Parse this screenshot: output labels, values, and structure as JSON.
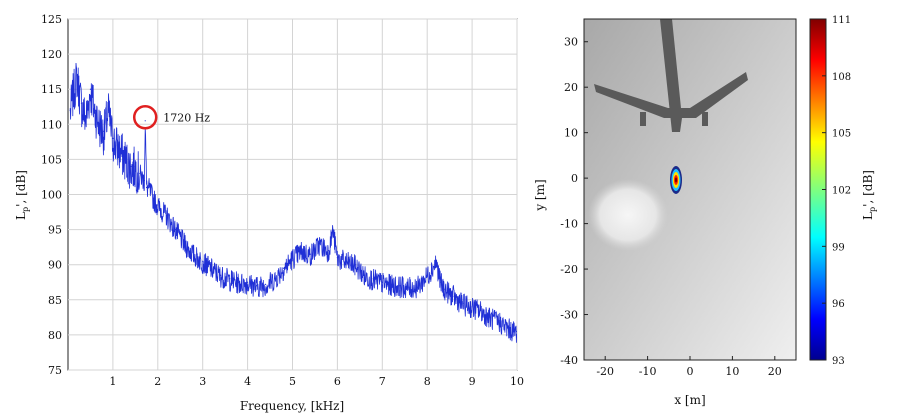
{
  "chart_data": [
    {
      "type": "line",
      "xlabel": "Frequency, [kHz]",
      "ylabel": "L",
      "ylabel_sub": "p",
      "ylabel_unit": "', [dB]",
      "xlim": [
        0,
        10
      ],
      "ylim": [
        75,
        125
      ],
      "grid": true,
      "x_ticks": [
        1,
        2,
        3,
        4,
        5,
        6,
        7,
        8,
        9,
        10
      ],
      "y_ticks": [
        75,
        80,
        85,
        90,
        95,
        100,
        105,
        110,
        115,
        120,
        125
      ],
      "series_color": "#1f2fd6",
      "series": [
        {
          "x": [
            0.05,
            0.1,
            0.2,
            0.3,
            0.4,
            0.5,
            0.6,
            0.7,
            0.8,
            0.9,
            1.0,
            1.1,
            1.2,
            1.3,
            1.4,
            1.5,
            1.6,
            1.7,
            1.72,
            1.75,
            1.8,
            1.9,
            2.0,
            2.2,
            2.4,
            2.6,
            2.8,
            3.0,
            3.2,
            3.4,
            3.6,
            3.8,
            4.0,
            4.2,
            4.4,
            4.6,
            4.8,
            5.0,
            5.2,
            5.4,
            5.6,
            5.8,
            5.9,
            6.0,
            6.2,
            6.4,
            6.6,
            6.8,
            7.0,
            7.2,
            7.4,
            7.6,
            7.8,
            8.0,
            8.2,
            8.3,
            8.4,
            8.6,
            8.8,
            9.0,
            9.2,
            9.4,
            9.6,
            9.8,
            10.0
          ],
          "y": [
            112,
            114,
            117,
            113,
            111,
            115,
            112,
            110,
            109,
            112,
            108,
            107,
            106,
            105,
            104,
            104,
            103,
            102,
            110.5,
            101,
            101,
            99.5,
            98.5,
            97,
            95,
            93,
            91.5,
            90.5,
            89.5,
            88.5,
            88,
            87.5,
            87.5,
            87,
            87.2,
            88,
            89.5,
            91,
            92,
            91.5,
            93,
            92,
            95,
            91,
            90.5,
            90,
            88.5,
            88,
            87.5,
            87.2,
            87,
            86.8,
            87,
            88.5,
            90.5,
            87.5,
            86.5,
            85.5,
            84.5,
            84,
            83.5,
            82.5,
            82,
            81,
            80.5
          ]
        }
      ],
      "annotation": {
        "text": "1720 Hz",
        "x": 1.72,
        "y": 111,
        "marker_color": "#e02020"
      }
    },
    {
      "type": "heatmap",
      "xlabel": "x [m]",
      "ylabel": "y [m]",
      "xlim": [
        -25,
        25
      ],
      "ylim": [
        -40,
        35
      ],
      "x_ticks": [
        -20,
        -10,
        0,
        10,
        20
      ],
      "y_ticks": [
        30,
        20,
        10,
        0,
        -10,
        -20,
        -30,
        -40
      ],
      "colorbar_label": "L",
      "colorbar_label_sub": "p",
      "colorbar_label_unit": "', [dB]",
      "colorbar_range": [
        93,
        111
      ],
      "colorbar_ticks": [
        111,
        108,
        105,
        102,
        99,
        96,
        93
      ],
      "source": {
        "x": -1,
        "y": -1,
        "level": 111
      }
    }
  ]
}
